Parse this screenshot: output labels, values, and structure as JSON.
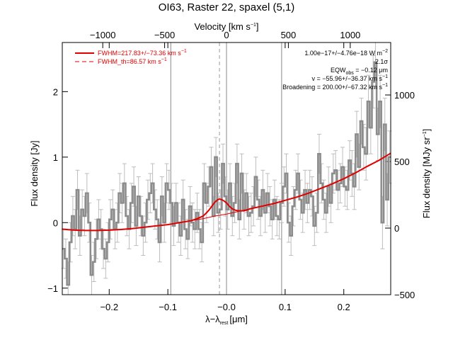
{
  "chart_data": {
    "type": "line",
    "title": "OI63, Raster 22, spaxel (5,1)",
    "xlabel": "λ−λ",
    "xlabel_sub": "rest",
    "xlabel_unit": "[μm]",
    "top_xlabel": "Velocity [km s",
    "top_xlabel_sup": "−1",
    "top_xlabel_end": "]",
    "ylabel": "Flux density [Jy]",
    "right_ylabel": "Flux density [MJy sr",
    "right_ylabel_sup": "−1",
    "right_ylabel_end": "]",
    "xlim": [
      -0.28,
      0.28
    ],
    "ylim": [
      -1.1,
      2.75
    ],
    "right_ylim": [
      -500,
      1394
    ],
    "top_xlim": [
      -1327,
      1327
    ],
    "x_ticks": [
      -0.2,
      -0.1,
      0.0,
      0.1,
      0.2
    ],
    "x_tick_labels": [
      "−0.2",
      "−0.1",
      "−0.0",
      "0.1",
      "0.2"
    ],
    "y_ticks": [
      -1,
      0,
      1,
      2
    ],
    "y_tick_labels": [
      "−1",
      "0",
      "1",
      "2"
    ],
    "right_y_ticks": [
      -500,
      0,
      500,
      1000
    ],
    "right_y_tick_labels": [
      "−500",
      "0",
      "500",
      "1000"
    ],
    "top_x_ticks": [
      -1000,
      -500,
      0,
      500,
      1000
    ],
    "top_x_tick_labels": [
      "−1000",
      "−500",
      "0",
      "500",
      "1000"
    ],
    "vertical_lines": [
      -0.095,
      0.0,
      0.094
    ],
    "dashed_line_x": -0.012,
    "grid": false,
    "legend_position": "top-left",
    "legend": [
      {
        "label": "FWHM=217.83+/−73.36 km s",
        "sup": "−1",
        "style": "solid",
        "color": "#e00000"
      },
      {
        "label": "FWHM_th=86.57 km s",
        "sup": "−1",
        "style": "dashed",
        "color": "#e00000"
      }
    ],
    "annotations": [
      {
        "text": "1.00e−17+/−4.76e−18 W m",
        "sup": "−2"
      },
      {
        "text": "2.1σ"
      },
      {
        "text": "EQW",
        "sub": "obs",
        "text_end": " = −0.12 μm"
      },
      {
        "text": "v = −55.96+/−36.37 km s",
        "sup": "−1"
      },
      {
        "text": "Broadening = 200.00+/−67.32 km s",
        "sup": "−1"
      }
    ],
    "series": [
      {
        "name": "spectrum",
        "color": "#8c8c8c",
        "x": [
          -0.28,
          -0.276,
          -0.272,
          -0.268,
          -0.264,
          -0.26,
          -0.256,
          -0.252,
          -0.248,
          -0.244,
          -0.24,
          -0.236,
          -0.232,
          -0.228,
          -0.224,
          -0.22,
          -0.216,
          -0.212,
          -0.208,
          -0.204,
          -0.2,
          -0.196,
          -0.192,
          -0.188,
          -0.184,
          -0.18,
          -0.176,
          -0.172,
          -0.168,
          -0.164,
          -0.16,
          -0.156,
          -0.152,
          -0.148,
          -0.144,
          -0.14,
          -0.136,
          -0.132,
          -0.128,
          -0.124,
          -0.12,
          -0.116,
          -0.112,
          -0.108,
          -0.104,
          -0.1,
          -0.096,
          -0.092,
          -0.088,
          -0.084,
          -0.08,
          -0.076,
          -0.072,
          -0.068,
          -0.064,
          -0.06,
          -0.056,
          -0.052,
          -0.048,
          -0.044,
          -0.04,
          -0.036,
          -0.032,
          -0.028,
          -0.024,
          -0.02,
          -0.016,
          -0.012,
          -0.008,
          -0.004,
          0.0,
          0.004,
          0.008,
          0.012,
          0.016,
          0.02,
          0.024,
          0.028,
          0.032,
          0.036,
          0.04,
          0.044,
          0.048,
          0.052,
          0.056,
          0.06,
          0.064,
          0.068,
          0.072,
          0.076,
          0.08,
          0.084,
          0.088,
          0.092,
          0.096,
          0.1,
          0.104,
          0.108,
          0.112,
          0.116,
          0.12,
          0.124,
          0.128,
          0.132,
          0.136,
          0.14,
          0.144,
          0.148,
          0.152,
          0.156,
          0.16,
          0.164,
          0.168,
          0.172,
          0.176,
          0.18,
          0.184,
          0.188,
          0.192,
          0.196,
          0.2,
          0.204,
          0.208,
          0.212,
          0.216,
          0.22,
          0.224,
          0.228,
          0.232,
          0.236,
          0.24,
          0.244,
          0.248,
          0.252,
          0.256,
          0.26,
          0.264,
          0.268,
          0.272,
          0.276
        ],
        "y": [
          -0.4,
          -0.55,
          -0.95,
          -0.3,
          0.1,
          -0.1,
          0.5,
          -0.2,
          0.2,
          0.1,
          0.45,
          0.0,
          -0.8,
          -0.6,
          -0.25,
          0.05,
          -0.1,
          -0.4,
          -0.55,
          -0.3,
          0.05,
          0.2,
          -0.1,
          0.0,
          0.45,
          0.3,
          0.6,
          0.1,
          -0.1,
          0.3,
          0.55,
          -0.05,
          0.4,
          0.1,
          -0.2,
          0.0,
          0.35,
          0.45,
          0.6,
          0.2,
          0.05,
          -0.3,
          0.4,
          0.0,
          0.6,
          0.5,
          0.3,
          -0.05,
          0.3,
          0.0,
          -0.2,
          0.35,
          -0.1,
          -0.25,
          0.25,
          0.0,
          -0.1,
          0.15,
          -0.1,
          -0.3,
          0.6,
          0.3,
          0.55,
          0.85,
          0.1,
          1.0,
          0.15,
          0.2,
          0.9,
          0.4,
          0.2,
          0.6,
          0.1,
          0.3,
          0.9,
          0.05,
          0.75,
          0.2,
          0.45,
          0.1,
          0.15,
          0.25,
          0.7,
          0.35,
          0.1,
          0.5,
          0.15,
          0.45,
          0.25,
          0.05,
          0.35,
          0.1,
          0.05,
          0.3,
          0.55,
          0.75,
          0.0,
          -0.2,
          0.25,
          0.5,
          0.75,
          0.35,
          0.15,
          0.5,
          0.3,
          0.5,
          0.4,
          -0.05,
          0.15,
          1.05,
          0.6,
          0.35,
          0.15,
          0.55,
          0.3,
          0.75,
          0.8,
          0.5,
          0.6,
          0.85,
          0.55,
          0.5,
          0.95,
          0.75,
          0.55,
          1.35,
          0.85,
          1.55,
          1.15,
          1.05,
          1.85,
          1.45,
          2.15,
          2.45,
          1.35,
          1.85,
          0.0,
          1.5,
          0.35,
          1.0
        ],
        "err": [
          0.3,
          0.3,
          0.35,
          0.3,
          0.3,
          0.3,
          0.3,
          0.3,
          0.3,
          0.3,
          0.3,
          0.3,
          0.3,
          0.3,
          0.3,
          0.3,
          0.3,
          0.3,
          0.3,
          0.3,
          0.3,
          0.3,
          0.3,
          0.3,
          0.3,
          0.3,
          0.3,
          0.3,
          0.3,
          0.3,
          0.3,
          0.3,
          0.3,
          0.3,
          0.3,
          0.3,
          0.3,
          0.3,
          0.3,
          0.3,
          0.3,
          0.3,
          0.3,
          0.3,
          0.3,
          0.3,
          0.3,
          0.3,
          0.3,
          0.3,
          0.3,
          0.3,
          0.3,
          0.3,
          0.3,
          0.3,
          0.3,
          0.3,
          0.3,
          0.3,
          0.3,
          0.3,
          0.3,
          0.3,
          0.3,
          0.3,
          0.3,
          0.3,
          0.3,
          0.3,
          0.3,
          0.3,
          0.3,
          0.3,
          0.3,
          0.3,
          0.3,
          0.3,
          0.3,
          0.3,
          0.3,
          0.3,
          0.3,
          0.3,
          0.3,
          0.3,
          0.3,
          0.3,
          0.3,
          0.3,
          0.3,
          0.3,
          0.3,
          0.3,
          0.3,
          0.3,
          0.3,
          0.3,
          0.3,
          0.3,
          0.3,
          0.3,
          0.3,
          0.3,
          0.3,
          0.3,
          0.3,
          0.3,
          0.3,
          0.3,
          0.3,
          0.3,
          0.3,
          0.3,
          0.3,
          0.3,
          0.3,
          0.3,
          0.3,
          0.3,
          0.3,
          0.3,
          0.3,
          0.35,
          0.35,
          0.35,
          0.35,
          0.35,
          0.35,
          0.4,
          0.4,
          0.4,
          0.4,
          0.4,
          0.4,
          0.4,
          0.4,
          0.4,
          0.4,
          0.4
        ]
      },
      {
        "name": "baseline fit",
        "color": "#e00000",
        "x": [
          -0.28,
          -0.26,
          -0.24,
          -0.22,
          -0.2,
          -0.18,
          -0.16,
          -0.14,
          -0.12,
          -0.1,
          -0.08,
          -0.06,
          -0.04,
          -0.02,
          0.0,
          0.02,
          0.04,
          0.06,
          0.08,
          0.1,
          0.12,
          0.14,
          0.16,
          0.18,
          0.2,
          0.22,
          0.24,
          0.26,
          0.28
        ],
        "y": [
          -0.1,
          -0.115,
          -0.12,
          -0.12,
          -0.115,
          -0.105,
          -0.09,
          -0.07,
          -0.05,
          -0.03,
          -0.0,
          0.03,
          0.06,
          0.1,
          0.13,
          0.17,
          0.21,
          0.25,
          0.29,
          0.34,
          0.39,
          0.45,
          0.52,
          0.59,
          0.67,
          0.76,
          0.86,
          0.95,
          1.06
        ]
      },
      {
        "name": "line fit",
        "color": "#e00000",
        "x": [
          -0.28,
          -0.26,
          -0.24,
          -0.22,
          -0.2,
          -0.18,
          -0.16,
          -0.14,
          -0.12,
          -0.1,
          -0.08,
          -0.06,
          -0.05,
          -0.04,
          -0.035,
          -0.03,
          -0.025,
          -0.02,
          -0.015,
          -0.012,
          -0.008,
          -0.004,
          0.0,
          0.005,
          0.01,
          0.015,
          0.02,
          0.03,
          0.04,
          0.06,
          0.08,
          0.1,
          0.12,
          0.14,
          0.16,
          0.18,
          0.2,
          0.22,
          0.24,
          0.26,
          0.28
        ],
        "y": [
          -0.1,
          -0.115,
          -0.12,
          -0.12,
          -0.115,
          -0.105,
          -0.09,
          -0.07,
          -0.05,
          -0.03,
          -0.0,
          0.03,
          0.06,
          0.1,
          0.14,
          0.19,
          0.25,
          0.31,
          0.35,
          0.36,
          0.35,
          0.33,
          0.3,
          0.25,
          0.21,
          0.19,
          0.18,
          0.18,
          0.21,
          0.25,
          0.29,
          0.34,
          0.39,
          0.45,
          0.52,
          0.59,
          0.67,
          0.76,
          0.86,
          0.95,
          1.06
        ]
      }
    ]
  }
}
